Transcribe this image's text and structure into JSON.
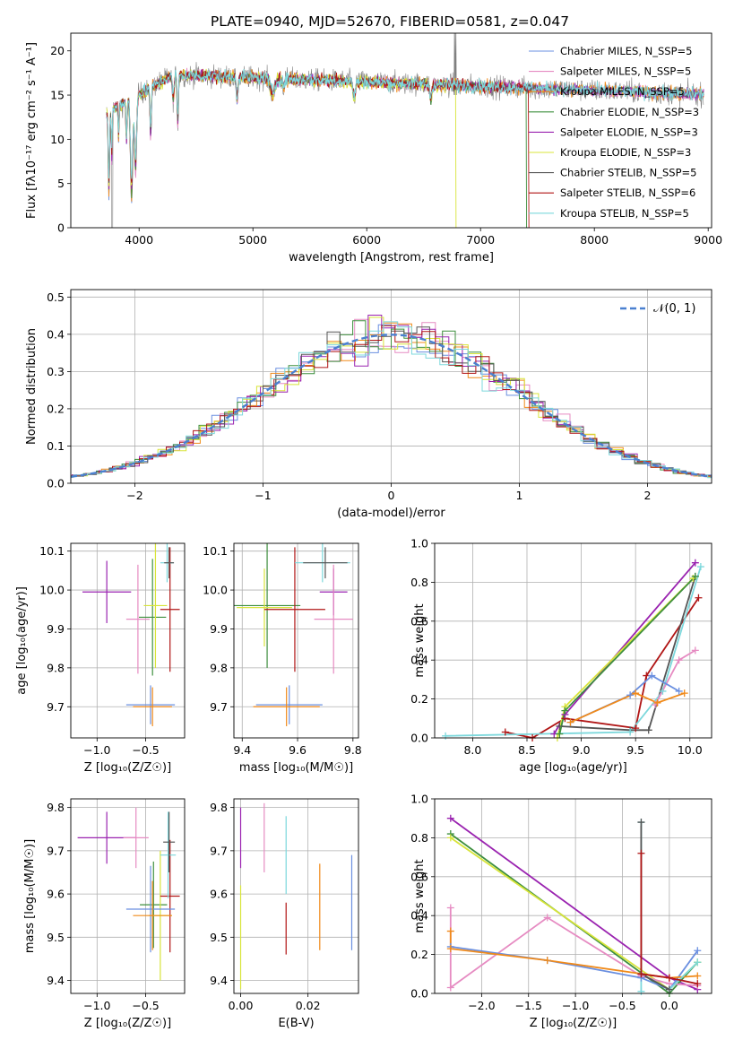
{
  "chart_data": [
    {
      "type": "line",
      "title": "PLATE=0940, MJD=52670, FIBERID=0581, z=0.047",
      "xlabel": "wavelength [Angstrom, rest frame]",
      "ylabel": "Flux [fλ10⁻¹⁷ erg cm⁻² s⁻¹ A⁻¹]",
      "xlim": [
        3400,
        9030
      ],
      "ylim": [
        0,
        22
      ],
      "xticks": [
        4000,
        5000,
        6000,
        7000,
        8000,
        9000
      ],
      "yticks": [
        0,
        5,
        10,
        15,
        20
      ],
      "legend_position": "upper right",
      "series": [
        {
          "name": "Chabrier MILES, N_SSP=5",
          "color": "#6a8fe0"
        },
        {
          "name": "Salpeter MILES, N_SSP=5",
          "color": "#e68bc2"
        },
        {
          "name": "Kroupa MILES, N_SSP=5",
          "color": "#f08a1a"
        },
        {
          "name": "Chabrier ELODIE, N_SSP=3",
          "color": "#3e8f3e"
        },
        {
          "name": "Salpeter ELODIE, N_SSP=3",
          "color": "#9a23b0"
        },
        {
          "name": "Kroupa ELODIE, N_SSP=3",
          "color": "#d8e43a"
        },
        {
          "name": "Chabrier STELIB, N_SSP=5",
          "color": "#555555"
        },
        {
          "name": "Salpeter STELIB, N_SSP=6",
          "color": "#b01515"
        },
        {
          "name": "Kroupa STELIB, N_SSP=5",
          "color": "#7cd8dc"
        }
      ]
    },
    {
      "type": "histogram",
      "xlabel": "(data-model)/error",
      "ylabel": "Normed distribution",
      "xlim": [
        -2.5,
        2.5
      ],
      "ylim": [
        0,
        0.52
      ],
      "xticks": [
        -2,
        -1,
        0,
        1,
        2
      ],
      "yticks": [
        0.0,
        0.1,
        0.2,
        0.3,
        0.4,
        0.5
      ],
      "grid": true,
      "legend_position": "upper right",
      "legend": "𝒩(0, 1)",
      "reference_curve": "normal(0,1)"
    },
    {
      "type": "scatter",
      "xlabel": "Z [log₁₀(Z/Z☉)]",
      "ylabel": "age  [log₁₀(age/yr)]",
      "xlim": [
        -1.27,
        -0.1
      ],
      "ylim": [
        9.62,
        10.12
      ],
      "xticks": [
        -1.0,
        -0.5
      ],
      "yticks": [
        9.7,
        9.8,
        9.9,
        10.0,
        10.1
      ],
      "grid": true,
      "points": [
        {
          "x": -0.9,
          "y": 9.995,
          "xerr": 0.25,
          "yerr": 0.08,
          "color": "#9a23b0"
        },
        {
          "x": -0.58,
          "y": 9.925,
          "xerr": 0.12,
          "yerr": 0.14,
          "color": "#e68bc2"
        },
        {
          "x": -0.43,
          "y": 9.93,
          "xerr": 0.14,
          "yerr": 0.15,
          "color": "#3e8f3e"
        },
        {
          "x": -0.4,
          "y": 9.96,
          "xerr": 0.12,
          "yerr": 0.16,
          "color": "#d8e43a"
        },
        {
          "x": -0.25,
          "y": 9.95,
          "xerr": 0.1,
          "yerr": 0.16,
          "color": "#b01515"
        },
        {
          "x": -0.28,
          "y": 10.07,
          "xerr": 0.07,
          "yerr": 0.05,
          "color": "#7cd8dc"
        },
        {
          "x": -0.26,
          "y": 10.07,
          "xerr": 0.05,
          "yerr": 0.04,
          "color": "#555555"
        },
        {
          "x": -0.45,
          "y": 9.705,
          "xerr": 0.25,
          "yerr": 0.05,
          "color": "#6a8fe0"
        },
        {
          "x": -0.43,
          "y": 9.7,
          "xerr": 0.2,
          "yerr": 0.05,
          "color": "#f08a1a"
        }
      ]
    },
    {
      "type": "scatter",
      "xlabel": "mass [log₁₀(M/M☉)]",
      "ylabel": "",
      "xlim": [
        9.37,
        9.82
      ],
      "ylim": [
        9.62,
        10.12
      ],
      "xticks": [
        9.4,
        9.6,
        9.8
      ],
      "yticks": [
        9.7,
        9.8,
        9.9,
        10.0,
        10.1
      ],
      "grid": true,
      "points": [
        {
          "x": 9.73,
          "y": 9.995,
          "xerr": 0.05,
          "yerr": 0.06,
          "color": "#9a23b0"
        },
        {
          "x": 9.73,
          "y": 9.925,
          "xerr": 0.07,
          "yerr": 0.14,
          "color": "#e68bc2"
        },
        {
          "x": 9.49,
          "y": 9.96,
          "xerr": 0.12,
          "yerr": 0.16,
          "color": "#3e8f3e"
        },
        {
          "x": 9.48,
          "y": 9.955,
          "xerr": 0.1,
          "yerr": 0.1,
          "color": "#d8e43a"
        },
        {
          "x": 9.59,
          "y": 9.95,
          "xerr": 0.11,
          "yerr": 0.16,
          "color": "#b01515"
        },
        {
          "x": 9.69,
          "y": 10.07,
          "xerr": 0.1,
          "yerr": 0.05,
          "color": "#7cd8dc"
        },
        {
          "x": 9.7,
          "y": 10.07,
          "xerr": 0.08,
          "yerr": 0.04,
          "color": "#555555"
        },
        {
          "x": 9.57,
          "y": 9.705,
          "xerr": 0.12,
          "yerr": 0.05,
          "color": "#6a8fe0"
        },
        {
          "x": 9.56,
          "y": 9.7,
          "xerr": 0.12,
          "yerr": 0.05,
          "color": "#f08a1a"
        }
      ]
    },
    {
      "type": "line",
      "xlabel": "age  [log₁₀(age/yr)]",
      "ylabel": "mass weight",
      "xlim": [
        7.65,
        10.2
      ],
      "ylim": [
        0,
        1
      ],
      "xticks": [
        8.0,
        8.5,
        9.0,
        9.5,
        10.0
      ],
      "yticks": [
        0.0,
        0.2,
        0.4,
        0.6,
        0.8,
        1.0
      ],
      "grid": true,
      "series": [
        {
          "color": "#b01515",
          "x": [
            8.3,
            8.55,
            8.85,
            9.5,
            9.6,
            10.08
          ],
          "y": [
            0.03,
            0.0,
            0.1,
            0.05,
            0.32,
            0.72
          ]
        },
        {
          "color": "#555555",
          "x": [
            8.8,
            9.45,
            9.62,
            10.05
          ],
          "y": [
            0.06,
            0.04,
            0.04,
            0.83
          ]
        },
        {
          "color": "#7cd8dc",
          "x": [
            7.75,
            9.45,
            9.75,
            10.1
          ],
          "y": [
            0.01,
            0.03,
            0.24,
            0.88
          ]
        },
        {
          "color": "#9a23b0",
          "x": [
            8.75,
            8.85,
            10.05
          ],
          "y": [
            0.02,
            0.12,
            0.9
          ]
        },
        {
          "color": "#d8e43a",
          "x": [
            8.78,
            8.85,
            10.03
          ],
          "y": [
            0.0,
            0.16,
            0.82
          ]
        },
        {
          "color": "#3e8f3e",
          "x": [
            8.8,
            8.85,
            10.05
          ],
          "y": [
            0.02,
            0.14,
            0.83
          ]
        },
        {
          "color": "#e68bc2",
          "x": [
            9.68,
            9.9,
            10.05
          ],
          "y": [
            0.17,
            0.4,
            0.45
          ]
        },
        {
          "color": "#6a8fe0",
          "x": [
            8.9,
            9.45,
            9.65,
            9.9
          ],
          "y": [
            0.08,
            0.22,
            0.32,
            0.24
          ]
        },
        {
          "color": "#f08a1a",
          "x": [
            8.9,
            9.5,
            9.7,
            9.95
          ],
          "y": [
            0.08,
            0.23,
            0.18,
            0.23
          ]
        }
      ]
    },
    {
      "type": "scatter",
      "xlabel": "Z [log₁₀(Z/Z☉)]",
      "ylabel": "mass [log₁₀(M/M☉)]",
      "xlim": [
        -1.27,
        -0.1
      ],
      "ylim": [
        9.37,
        9.82
      ],
      "xticks": [
        -1.0,
        -0.5
      ],
      "yticks": [
        9.4,
        9.5,
        9.6,
        9.7,
        9.8
      ],
      "grid": true,
      "points": [
        {
          "x": -0.9,
          "y": 9.73,
          "xerr": 0.3,
          "yerr": 0.06,
          "color": "#9a23b0"
        },
        {
          "x": -0.6,
          "y": 9.73,
          "xerr": 0.13,
          "yerr": 0.07,
          "color": "#e68bc2"
        },
        {
          "x": -0.42,
          "y": 9.575,
          "xerr": 0.14,
          "yerr": 0.1,
          "color": "#3e8f3e"
        },
        {
          "x": -0.35,
          "y": 9.55,
          "xerr": 0.12,
          "yerr": 0.15,
          "color": "#d8e43a"
        },
        {
          "x": -0.25,
          "y": 9.595,
          "xerr": 0.1,
          "yerr": 0.13,
          "color": "#b01515"
        },
        {
          "x": -0.27,
          "y": 9.69,
          "xerr": 0.08,
          "yerr": 0.1,
          "color": "#7cd8dc"
        },
        {
          "x": -0.26,
          "y": 9.72,
          "xerr": 0.06,
          "yerr": 0.07,
          "color": "#555555"
        },
        {
          "x": -0.45,
          "y": 9.565,
          "xerr": 0.25,
          "yerr": 0.1,
          "color": "#6a8fe0"
        },
        {
          "x": -0.43,
          "y": 9.55,
          "xerr": 0.2,
          "yerr": 0.08,
          "color": "#f08a1a"
        }
      ]
    },
    {
      "type": "scatter",
      "xlabel": "E(B-V)",
      "ylabel": "",
      "xlim": [
        -0.002,
        0.035
      ],
      "ylim": [
        9.37,
        9.82
      ],
      "xticks": [
        0.0,
        0.02
      ],
      "yticks": [
        9.4,
        9.5,
        9.6,
        9.7,
        9.8
      ],
      "grid": true,
      "points": [
        {
          "x": 0.0,
          "y": 9.73,
          "yerr": 0.07,
          "color": "#9a23b0"
        },
        {
          "x": 0.007,
          "y": 9.73,
          "yerr": 0.08,
          "color": "#e68bc2"
        },
        {
          "x": 0.0,
          "y": 9.5,
          "yerr": 0.12,
          "color": "#d8e43a"
        },
        {
          "x": 0.0135,
          "y": 9.69,
          "yerr": 0.09,
          "color": "#7cd8dc"
        },
        {
          "x": 0.0135,
          "y": 9.52,
          "yerr": 0.06,
          "color": "#b01515"
        },
        {
          "x": 0.0235,
          "y": 9.57,
          "yerr": 0.1,
          "color": "#f08a1a"
        },
        {
          "x": 0.033,
          "y": 9.58,
          "yerr": 0.11,
          "color": "#6a8fe0"
        }
      ]
    },
    {
      "type": "line",
      "xlabel": "Z [log₁₀(Z/Z☉)]",
      "ylabel": "mass weight",
      "xlim": [
        -2.5,
        0.45
      ],
      "ylim": [
        0,
        1
      ],
      "xticks": [
        -2.0,
        -1.5,
        -1.0,
        -0.5,
        0.0
      ],
      "yticks": [
        0.0,
        0.2,
        0.4,
        0.6,
        0.8,
        1.0
      ],
      "grid": true,
      "series": [
        {
          "color": "#9a23b0",
          "x": [
            -2.33,
            0.0,
            0.3
          ],
          "y": [
            0.9,
            0.08,
            0.02
          ]
        },
        {
          "color": "#3e8f3e",
          "x": [
            -2.33,
            0.0,
            0.3
          ],
          "y": [
            0.82,
            0.0,
            0.16
          ]
        },
        {
          "color": "#d8e43a",
          "x": [
            -2.33,
            0.0,
            0.3
          ],
          "y": [
            0.8,
            0.02,
            0.16
          ]
        },
        {
          "color": "#e68bc2",
          "x": [
            -2.33,
            -2.33,
            -1.3,
            -0.3,
            0.0,
            0.3
          ],
          "y": [
            0.44,
            0.03,
            0.39,
            0.09,
            0.05,
            0.04
          ]
        },
        {
          "color": "#6a8fe0",
          "x": [
            -2.33,
            -1.3,
            -0.3,
            0.0,
            0.3
          ],
          "y": [
            0.24,
            0.17,
            0.08,
            0.02,
            0.22
          ]
        },
        {
          "color": "#f08a1a",
          "x": [
            -2.33,
            -2.33,
            -1.3,
            0.0,
            0.3
          ],
          "y": [
            0.32,
            0.23,
            0.17,
            0.08,
            0.09
          ]
        },
        {
          "color": "#7cd8dc",
          "x": [
            -0.3,
            -0.3,
            -0.3,
            0.0,
            0.3
          ],
          "y": [
            0.88,
            0.01,
            0.1,
            0.02,
            0.16
          ]
        },
        {
          "color": "#555555",
          "x": [
            -0.3,
            -0.3,
            0.0
          ],
          "y": [
            0.88,
            0.1,
            0.02
          ]
        },
        {
          "color": "#b01515",
          "x": [
            -0.3,
            -0.3,
            0.0,
            0.3
          ],
          "y": [
            0.72,
            0.1,
            0.08,
            0.05
          ]
        }
      ]
    }
  ]
}
